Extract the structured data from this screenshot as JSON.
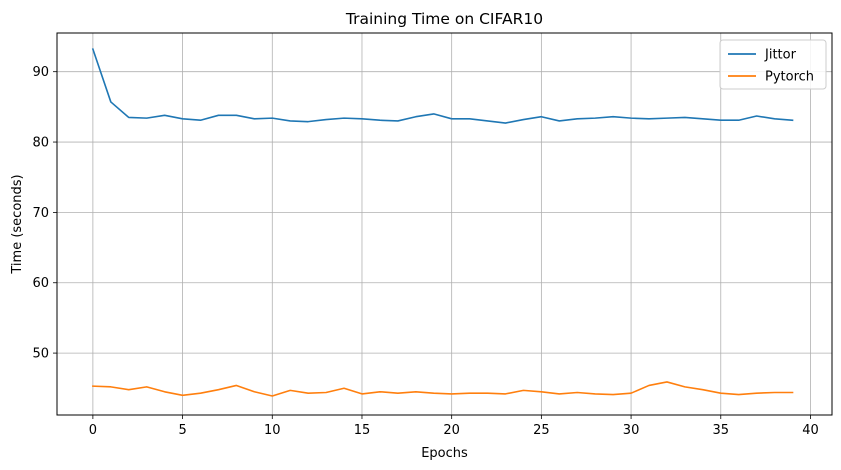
{
  "chart_data": {
    "type": "line",
    "title": "Training Time on CIFAR10",
    "xlabel": "Epochs",
    "ylabel": "Time (seconds)",
    "xlim": [
      -2,
      41.2
    ],
    "ylim": [
      41.2,
      95.5
    ],
    "xticks": [
      0,
      5,
      10,
      15,
      20,
      25,
      30,
      35,
      40
    ],
    "yticks": [
      50,
      60,
      70,
      80,
      90
    ],
    "grid": true,
    "legend": "top-right",
    "x": [
      0,
      1,
      2,
      3,
      4,
      5,
      6,
      7,
      8,
      9,
      10,
      11,
      12,
      13,
      14,
      15,
      16,
      17,
      18,
      19,
      20,
      21,
      22,
      23,
      24,
      25,
      26,
      27,
      28,
      29,
      30,
      31,
      32,
      33,
      34,
      35,
      36,
      37,
      38,
      39
    ],
    "series": [
      {
        "name": "Jittor",
        "color": "#1f77b4",
        "values": [
          93.2,
          85.7,
          83.5,
          83.4,
          83.8,
          83.3,
          83.1,
          83.8,
          83.8,
          83.3,
          83.4,
          83.0,
          82.9,
          83.2,
          83.4,
          83.3,
          83.1,
          83.0,
          83.6,
          84.0,
          83.3,
          83.3,
          83.0,
          82.7,
          83.2,
          83.6,
          83.0,
          83.3,
          83.4,
          83.6,
          83.4,
          83.3,
          83.4,
          83.5,
          83.3,
          83.1,
          83.1,
          83.7,
          83.3,
          83.1
        ]
      },
      {
        "name": "Pytorch",
        "color": "#ff7f0e",
        "values": [
          45.3,
          45.2,
          44.8,
          45.2,
          44.5,
          44.0,
          44.3,
          44.8,
          45.4,
          44.5,
          43.9,
          44.7,
          44.3,
          44.4,
          45.0,
          44.2,
          44.5,
          44.3,
          44.5,
          44.3,
          44.2,
          44.3,
          44.3,
          44.2,
          44.7,
          44.5,
          44.2,
          44.4,
          44.2,
          44.1,
          44.3,
          45.4,
          45.9,
          45.2,
          44.8,
          44.3,
          44.1,
          44.3,
          44.4,
          44.4
        ]
      }
    ]
  }
}
